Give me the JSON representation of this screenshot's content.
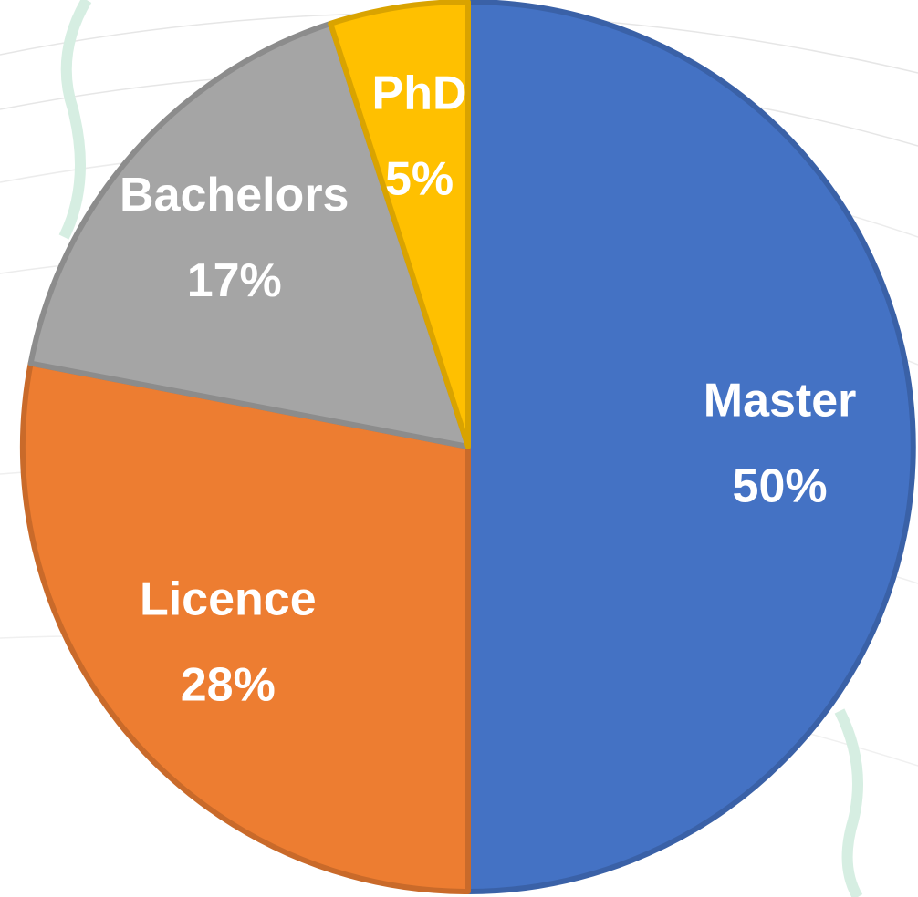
{
  "chart_data": {
    "type": "pie",
    "categories": [
      "Master",
      "Licence",
      "Bachelors",
      "PhD"
    ],
    "values": [
      50,
      28,
      17,
      5
    ],
    "value_labels": [
      "50%",
      "28%",
      "17%",
      "5%"
    ],
    "colors": [
      "#4472c4",
      "#ed7d31",
      "#a5a5a5",
      "#ffc000"
    ]
  }
}
